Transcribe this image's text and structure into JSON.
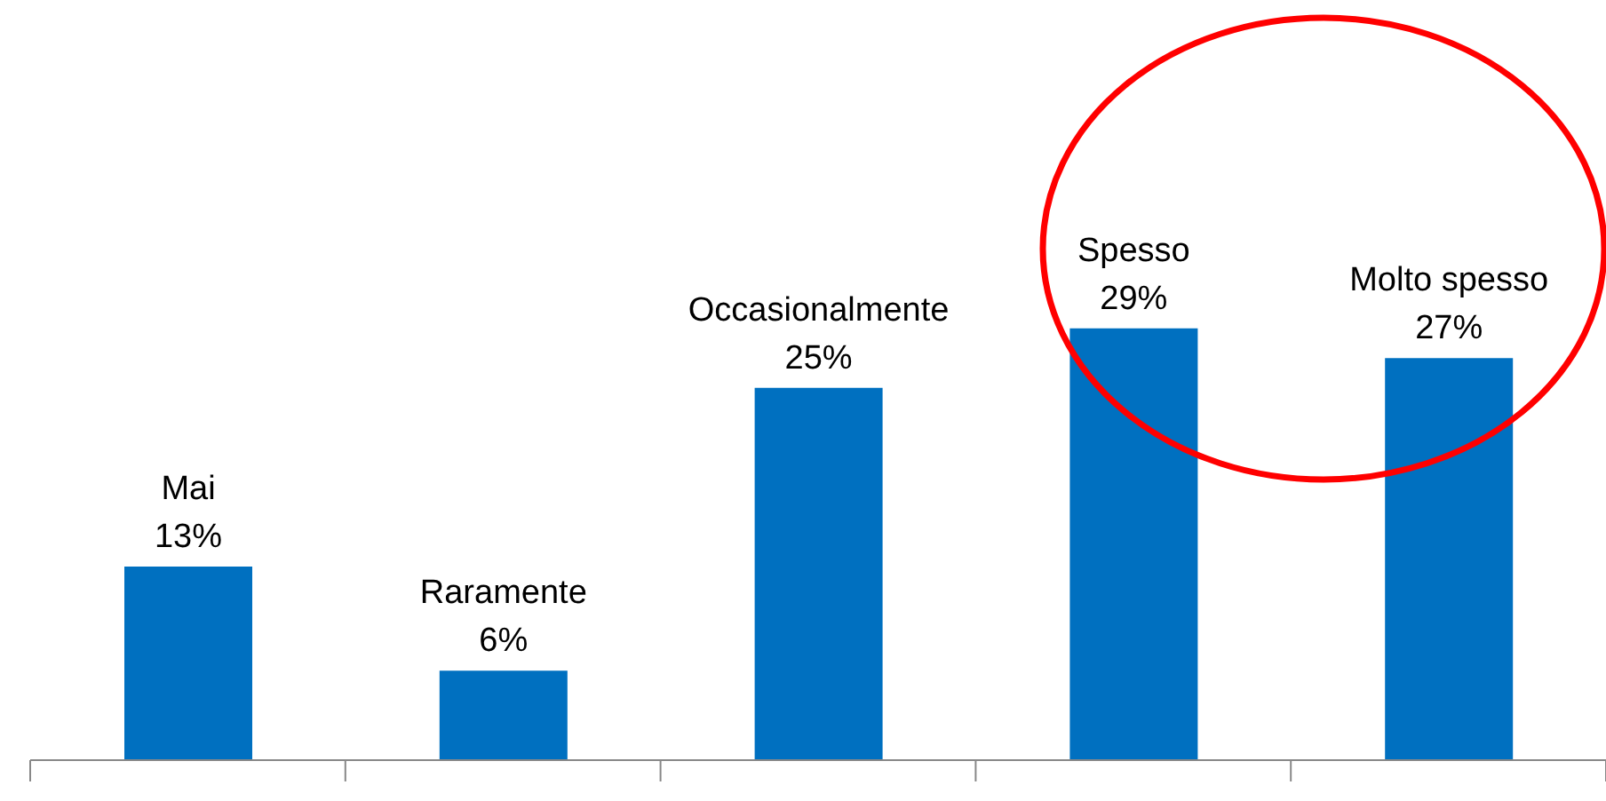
{
  "chart_data": {
    "type": "bar",
    "categories": [
      "Mai",
      "Raramente",
      "Occasionalmente",
      "Spesso",
      "Molto spesso"
    ],
    "values": [
      13,
      6,
      25,
      29,
      27
    ],
    "value_labels": [
      "13%",
      "6%",
      "25%",
      "29%",
      "27%"
    ],
    "color": "#0070c0"
  }
}
